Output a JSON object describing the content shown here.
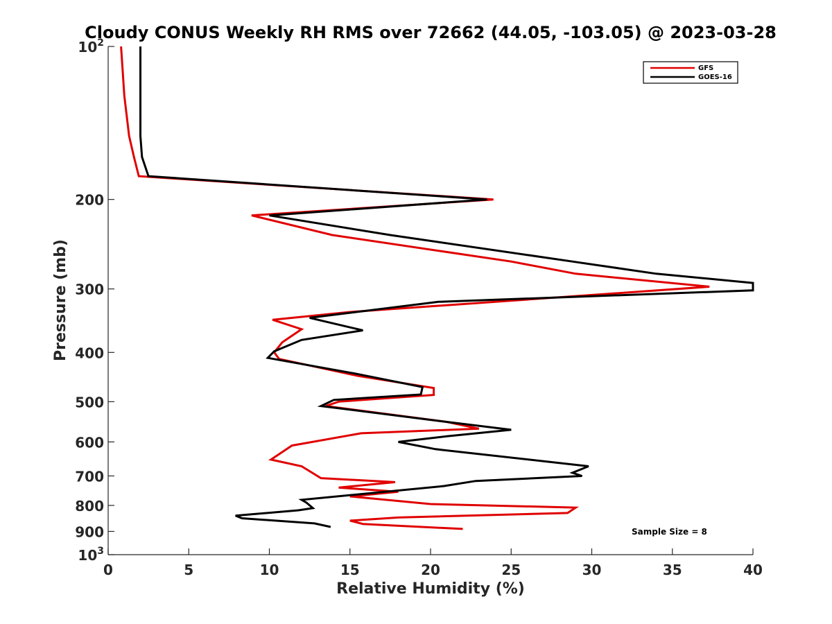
{
  "chart_data": {
    "type": "line",
    "title": "Cloudy CONUS Weekly RH RMS over 72662 (44.05, -103.05) @ 2023-03-28",
    "xlabel": "Relative Humidity (%)",
    "ylabel": "Pressure (mb)",
    "xlim": [
      0,
      40
    ],
    "ylim": [
      100,
      1000
    ],
    "y_scale": "log",
    "y_reversed": true,
    "grid": false,
    "x_ticks": [
      0,
      5,
      10,
      15,
      20,
      25,
      30,
      35,
      40
    ],
    "x_tick_labels": [
      "0",
      "5",
      "10",
      "15",
      "20",
      "25",
      "30",
      "35",
      "40"
    ],
    "y_ticks": [
      100,
      200,
      300,
      400,
      500,
      600,
      700,
      800,
      900,
      1000
    ],
    "y_tick_labels": [
      {
        "base": "10",
        "exp": "2"
      },
      {
        "base": "200",
        "exp": ""
      },
      {
        "base": "300",
        "exp": ""
      },
      {
        "base": "400",
        "exp": ""
      },
      {
        "base": "500",
        "exp": ""
      },
      {
        "base": "600",
        "exp": ""
      },
      {
        "base": "700",
        "exp": ""
      },
      {
        "base": "800",
        "exp": ""
      },
      {
        "base": "900",
        "exp": ""
      },
      {
        "base": "10",
        "exp": "3"
      }
    ],
    "legend_position": "top-right",
    "annotation": "Sample Size = 8",
    "series": [
      {
        "name": "GFS",
        "color": "#e00000",
        "points": [
          [
            0.8,
            100
          ],
          [
            1.0,
            125
          ],
          [
            1.3,
            150
          ],
          [
            1.6,
            165
          ],
          [
            1.9,
            180
          ],
          [
            23.9,
            200
          ],
          [
            8.9,
            215
          ],
          [
            13.9,
            235
          ],
          [
            25.0,
            265
          ],
          [
            29.0,
            280
          ],
          [
            37.3,
            297
          ],
          [
            15.0,
            333
          ],
          [
            10.2,
            345
          ],
          [
            12.0,
            360
          ],
          [
            10.8,
            382
          ],
          [
            10.3,
            400
          ],
          [
            10.6,
            412
          ],
          [
            15.5,
            445
          ],
          [
            20.2,
            470
          ],
          [
            20.2,
            485
          ],
          [
            14.3,
            500
          ],
          [
            13.5,
            510
          ],
          [
            21.0,
            548
          ],
          [
            23.0,
            565
          ],
          [
            15.7,
            577
          ],
          [
            11.4,
            610
          ],
          [
            10.1,
            650
          ],
          [
            12.0,
            670
          ],
          [
            13.2,
            707
          ],
          [
            17.8,
            720
          ],
          [
            14.3,
            738
          ],
          [
            18.0,
            752
          ],
          [
            15.0,
            768
          ],
          [
            20.0,
            795
          ],
          [
            29.0,
            808
          ],
          [
            28.5,
            828
          ],
          [
            18.0,
            845
          ],
          [
            15.0,
            857
          ],
          [
            15.8,
            870
          ],
          [
            22.0,
            890
          ]
        ]
      },
      {
        "name": "GOES-16",
        "color": "#000000",
        "points": [
          [
            2.0,
            100
          ],
          [
            2.0,
            125
          ],
          [
            2.0,
            150
          ],
          [
            2.1,
            165
          ],
          [
            2.5,
            180
          ],
          [
            23.5,
            200
          ],
          [
            10.0,
            215
          ],
          [
            17.5,
            235
          ],
          [
            28.8,
            265
          ],
          [
            34.0,
            280
          ],
          [
            40.0,
            292
          ],
          [
            40.0,
            302
          ],
          [
            20.5,
            318
          ],
          [
            12.5,
            342
          ],
          [
            15.8,
            362
          ],
          [
            12.0,
            378
          ],
          [
            10.3,
            398
          ],
          [
            9.9,
            410
          ],
          [
            15.3,
            440
          ],
          [
            19.5,
            468
          ],
          [
            19.4,
            484
          ],
          [
            14.0,
            496
          ],
          [
            13.2,
            510
          ],
          [
            21.0,
            548
          ],
          [
            25.0,
            568
          ],
          [
            21.0,
            585
          ],
          [
            18.0,
            600
          ],
          [
            20.3,
            620
          ],
          [
            29.8,
            670
          ],
          [
            28.8,
            690
          ],
          [
            29.4,
            700
          ],
          [
            22.8,
            716
          ],
          [
            20.8,
            733
          ],
          [
            12.0,
            780
          ],
          [
            12.3,
            790
          ],
          [
            12.7,
            810
          ],
          [
            11.8,
            818
          ],
          [
            7.9,
            838
          ],
          [
            8.3,
            848
          ],
          [
            12.8,
            868
          ],
          [
            13.8,
            882
          ]
        ]
      }
    ]
  }
}
